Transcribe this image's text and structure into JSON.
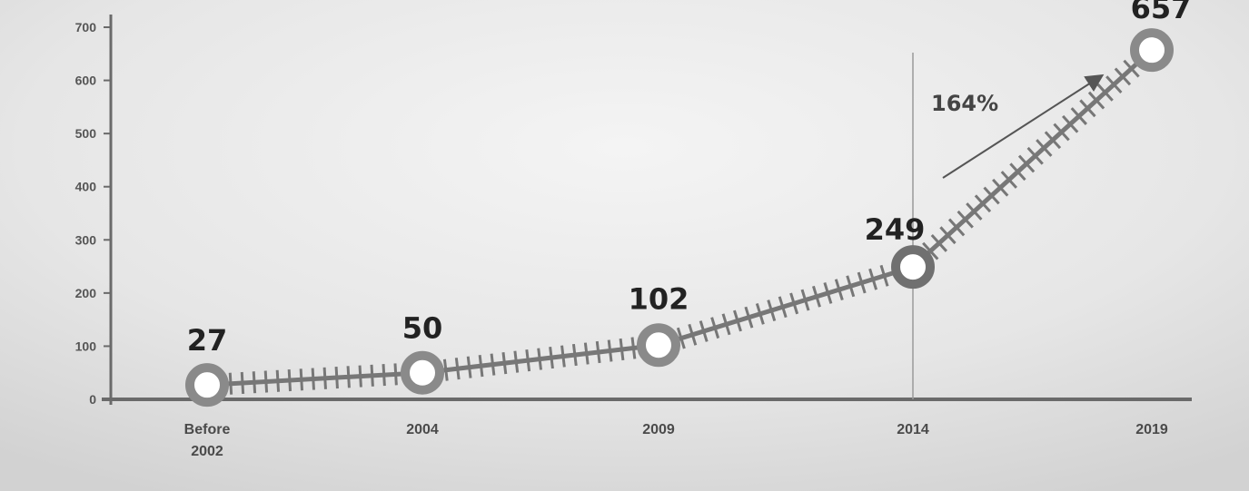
{
  "chart_data": {
    "type": "line",
    "categories": [
      [
        "Before",
        "2002"
      ],
      [
        "2004"
      ],
      [
        "2009"
      ],
      [
        "2014"
      ],
      [
        "2019"
      ]
    ],
    "values": [
      27,
      50,
      102,
      249,
      657
    ],
    "value_labels": [
      "27",
      "50",
      "102",
      "249",
      "657"
    ],
    "yticks": [
      0,
      100,
      200,
      300,
      400,
      500,
      600,
      700
    ],
    "ylim": [
      0,
      700
    ],
    "title": "",
    "xlabel": "",
    "ylabel": "",
    "grid": false,
    "annotation": {
      "text": "164%",
      "marker_at_category_index": 3
    },
    "colors": {
      "background": "#e4e4e4",
      "axis": "#6a6a6a",
      "line": "#777777",
      "marker_ring": "#8a8a8a",
      "marker_ring_dark": "#707070",
      "marker_fill": "#ffffff",
      "label": "#222222"
    }
  }
}
